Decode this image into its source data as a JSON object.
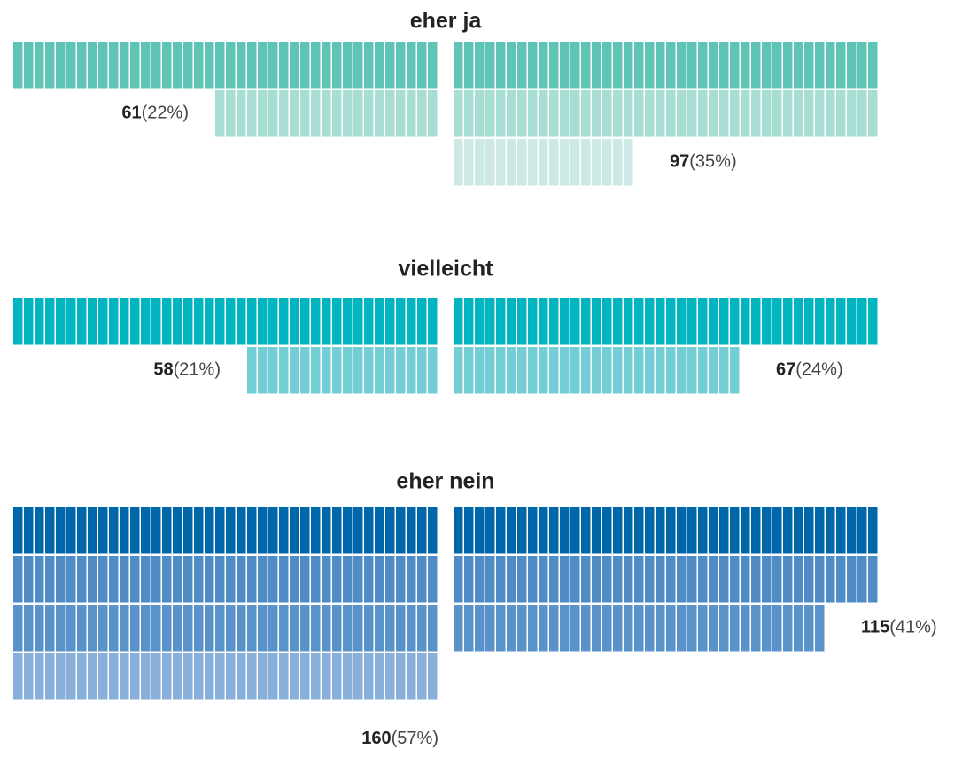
{
  "chart_data": {
    "type": "waffle",
    "groups": [
      {
        "title": "eher ja",
        "colors": [
          "#5ec4b6",
          "#a8ddd4",
          "#cce9e5"
        ],
        "blocks": [
          {
            "count": 61,
            "share": 22,
            "share_label": "(22%)"
          },
          {
            "count": 97,
            "share": 35,
            "share_label": "(35%)"
          }
        ]
      },
      {
        "title": "vielleicht",
        "colors": [
          "#00b5c0",
          "#73cdd4"
        ],
        "blocks": [
          {
            "count": 58,
            "share": 21,
            "share_label": "(21%)"
          },
          {
            "count": 67,
            "share": 24,
            "share_label": "(24%)"
          }
        ]
      },
      {
        "title": "eher nein",
        "colors": [
          "#0066aa",
          "#4f8cc6",
          "#5a93c9",
          "#88aeda"
        ],
        "blocks": [
          {
            "count": 160,
            "share": 57,
            "share_label": "(57%)"
          },
          {
            "count": 115,
            "share": 41,
            "share_label": "(41%)"
          }
        ]
      }
    ]
  }
}
